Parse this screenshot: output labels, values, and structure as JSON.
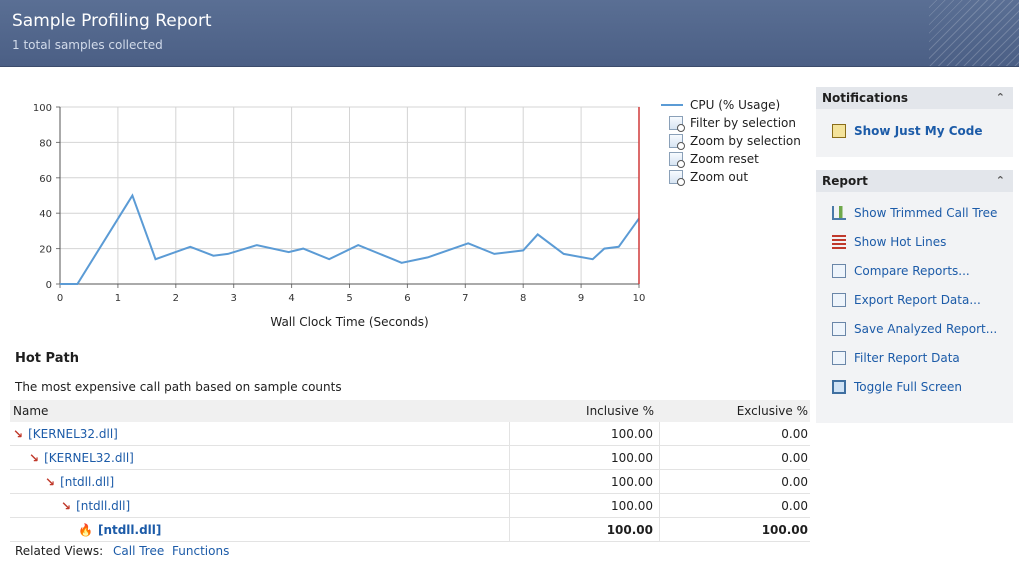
{
  "header": {
    "title": "Sample Profiling Report",
    "subtitle": "1 total samples collected"
  },
  "chart_data": {
    "type": "line",
    "xlabel": "Wall Clock Time (Seconds)",
    "ylabel": "",
    "xlim": [
      0,
      10
    ],
    "ylim": [
      0,
      100
    ],
    "x_ticks": [
      "0",
      "1",
      "2",
      "3",
      "4",
      "5",
      "6",
      "7",
      "8",
      "9",
      "10"
    ],
    "y_ticks": [
      "0",
      "20",
      "40",
      "60",
      "80",
      "100"
    ],
    "grid": true,
    "legend_position": "right",
    "series": [
      {
        "name": "CPU (% Usage)",
        "color": "#5b9bd5",
        "x": [
          0,
          0.3,
          1.25,
          1.65,
          2.25,
          2.65,
          2.9,
          3.4,
          3.95,
          4.2,
          4.65,
          5.15,
          5.75,
          5.9,
          6.35,
          7.05,
          7.5,
          8.0,
          8.25,
          8.7,
          9.2,
          9.4,
          9.65,
          10.0
        ],
        "y": [
          0,
          0,
          50,
          14,
          21,
          16,
          17,
          22,
          18,
          20,
          14,
          22,
          14,
          12,
          15,
          23,
          17,
          19,
          28,
          17,
          14,
          20,
          21,
          37
        ]
      }
    ],
    "marker_x": 10.0,
    "marker_color": "#d03a3a"
  },
  "legend": {
    "items": [
      {
        "label": "CPU (% Usage)",
        "icon": "line-swatch"
      },
      {
        "label": "Filter by selection",
        "icon": "filter-icon"
      },
      {
        "label": "Zoom by selection",
        "icon": "zoom-selection-icon"
      },
      {
        "label": "Zoom reset",
        "icon": "zoom-reset-icon"
      },
      {
        "label": "Zoom out",
        "icon": "zoom-out-icon"
      }
    ]
  },
  "hot_path": {
    "title": "Hot Path",
    "description": "The most expensive call path based on sample counts",
    "columns": {
      "name": "Name",
      "inclusive": "Inclusive %",
      "exclusive": "Exclusive %"
    },
    "rows": [
      {
        "name": "[KERNEL32.dll]",
        "inclusive": "100.00",
        "exclusive": "0.00"
      },
      {
        "name": "[KERNEL32.dll]",
        "inclusive": "100.00",
        "exclusive": "0.00"
      },
      {
        "name": "[ntdll.dll]",
        "inclusive": "100.00",
        "exclusive": "0.00"
      },
      {
        "name": "[ntdll.dll]",
        "inclusive": "100.00",
        "exclusive": "0.00"
      },
      {
        "name": "[ntdll.dll]",
        "inclusive": "100.00",
        "exclusive": "100.00"
      }
    ]
  },
  "related": {
    "label": "Related Views:",
    "links": [
      "Call Tree",
      "Functions"
    ]
  },
  "notifications": {
    "title": "Notifications",
    "items": [
      {
        "label": "Show Just My Code",
        "icon": "code-icon"
      }
    ]
  },
  "report": {
    "title": "Report",
    "items": [
      {
        "label": "Show Trimmed Call Tree",
        "icon": "call-tree-icon"
      },
      {
        "label": "Show Hot Lines",
        "icon": "hot-lines-icon"
      },
      {
        "label": "Compare Reports...",
        "icon": "compare-icon"
      },
      {
        "label": "Export Report Data...",
        "icon": "export-icon"
      },
      {
        "label": "Save Analyzed Report...",
        "icon": "save-icon"
      },
      {
        "label": "Filter Report Data",
        "icon": "filter-icon"
      },
      {
        "label": "Toggle Full Screen",
        "icon": "fullscreen-icon"
      }
    ]
  }
}
